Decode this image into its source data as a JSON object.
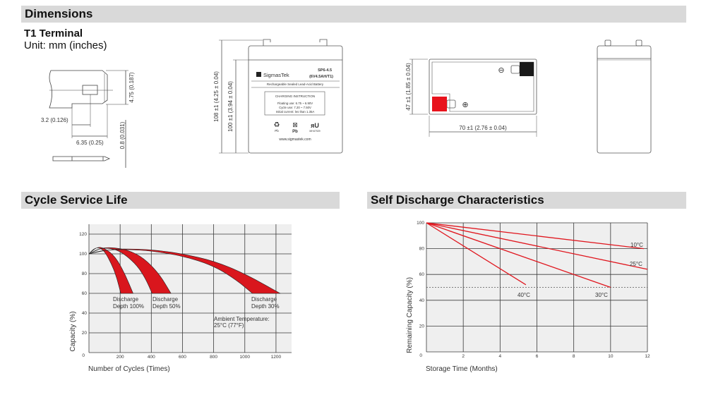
{
  "sections": {
    "dimensions": "Dimensions",
    "cycle_life": "Cycle Service Life",
    "self_discharge": "Self Discharge Characteristics"
  },
  "terminal": {
    "title": "T1 Terminal",
    "unit": "Unit: mm (inches)",
    "dim_height": "4.75 (0.187)",
    "dim_hole_offset": "3.2 (0.126)",
    "dim_width": "6.35 (0.25)",
    "dim_thickness": "0.8 (0.031)"
  },
  "front_view": {
    "dim_total_height": "108 ±1 (4.25 ± 0.04)",
    "dim_case_height": "100 ±1 (3.94 ± 0.04)",
    "brand": "SigmasTek",
    "model": "SP6-4.5",
    "rating": "(6V4.5AH/T1)",
    "description": "Rechargeable Sealed Lead-Acid Battery",
    "charging_title": "CHARGING INSTRUCTION",
    "charging_lines": [
      "Floating use: 6.75 ~ 6.90V",
      "Cycle use: 7.20 ~ 7.50V",
      "Initial current: les than 1.35A"
    ],
    "pb_label": "Pb",
    "pb_label2": "Pb",
    "ul_code": "MH47929",
    "website": "www.sigmastek.com"
  },
  "top_view": {
    "dim_depth": "47 ±1 (1.85 ± 0.04)",
    "dim_length": "70 ±1 (2.76 ± 0.04)",
    "negative_symbol": "⊖",
    "positive_symbol": "⊕",
    "colors": {
      "positive": "#e8121c",
      "negative": "#1a1a1a"
    }
  },
  "chart_data": [
    {
      "type": "area",
      "title": "",
      "xlabel": "Number of Cycles (Times)",
      "ylabel": "Capacity (%)",
      "xlim": [
        0,
        1300
      ],
      "ylim": [
        0,
        130
      ],
      "x_ticks": [
        200,
        400,
        600,
        800,
        1000,
        1200
      ],
      "y_ticks": [
        20,
        40,
        60,
        80,
        100,
        120
      ],
      "origin_label": "0",
      "grid": true,
      "color": "#d9161d",
      "series": [
        {
          "name": "Discharge Depth 100%",
          "label": [
            "Discharge",
            "Depth 100%"
          ],
          "inner": [
            [
              0,
              100
            ],
            [
              30,
              105
            ],
            [
              60,
              106.5
            ],
            [
              100,
              103
            ],
            [
              150,
              88
            ],
            [
              180,
              75
            ],
            [
              204,
              60
            ]
          ],
          "outer": [
            [
              0,
              100
            ],
            [
              50,
              107
            ],
            [
              100,
              106
            ],
            [
              170,
              97
            ],
            [
              230,
              80
            ],
            [
              283,
              60
            ]
          ]
        },
        {
          "name": "Discharge Depth 50%",
          "label": [
            "Discharge",
            "Depth 50%"
          ],
          "inner": [
            [
              0,
              100
            ],
            [
              60,
              105
            ],
            [
              120,
              106
            ],
            [
              200,
              103
            ],
            [
              300,
              90
            ],
            [
              360,
              76
            ],
            [
              405,
              60
            ]
          ],
          "outer": [
            [
              0,
              100
            ],
            [
              80,
              106
            ],
            [
              150,
              106.5
            ],
            [
              250,
              104
            ],
            [
              350,
              96
            ],
            [
              450,
              80
            ],
            [
              526,
              60
            ]
          ]
        },
        {
          "name": "Discharge Depth 30%",
          "label": [
            "Discharge",
            "Depth 30%"
          ],
          "inner": [
            [
              0,
              100
            ],
            [
              100,
              104
            ],
            [
              250,
              104.5
            ],
            [
              400,
              103
            ],
            [
              600,
              98
            ],
            [
              800,
              88
            ],
            [
              950,
              73
            ],
            [
              1048,
              60
            ]
          ],
          "outer": [
            [
              0,
              100
            ],
            [
              150,
              105
            ],
            [
              300,
              105
            ],
            [
              450,
              103.5
            ],
            [
              600,
              100
            ],
            [
              800,
              93
            ],
            [
              1000,
              80
            ],
            [
              1226,
              60
            ]
          ]
        }
      ],
      "annotation": [
        "Ambient Temperature:",
        "25°C (77°F)"
      ]
    },
    {
      "type": "line",
      "title": "",
      "xlabel": "Storage Time (Months)",
      "ylabel": "Remaining Capacity (%)",
      "xlim": [
        0,
        12
      ],
      "ylim": [
        0,
        100
      ],
      "x_ticks": [
        2,
        4,
        6,
        8,
        10,
        12
      ],
      "y_ticks": [
        20,
        40,
        60,
        80,
        100
      ],
      "origin_label": "0",
      "grid": true,
      "color": "#e0161e",
      "reference_line": 50,
      "series": [
        {
          "name": "10°C",
          "points": [
            [
              0,
              100
            ],
            [
              11.8,
              80
            ]
          ]
        },
        {
          "name": "25°C",
          "points": [
            [
              0,
              100
            ],
            [
              12,
              64
            ]
          ]
        },
        {
          "name": "30°C",
          "points": [
            [
              0,
              100
            ],
            [
              10,
              50
            ]
          ]
        },
        {
          "name": "40°C",
          "points": [
            [
              0,
              100
            ],
            [
              5.4,
              52
            ]
          ]
        }
      ]
    }
  ]
}
